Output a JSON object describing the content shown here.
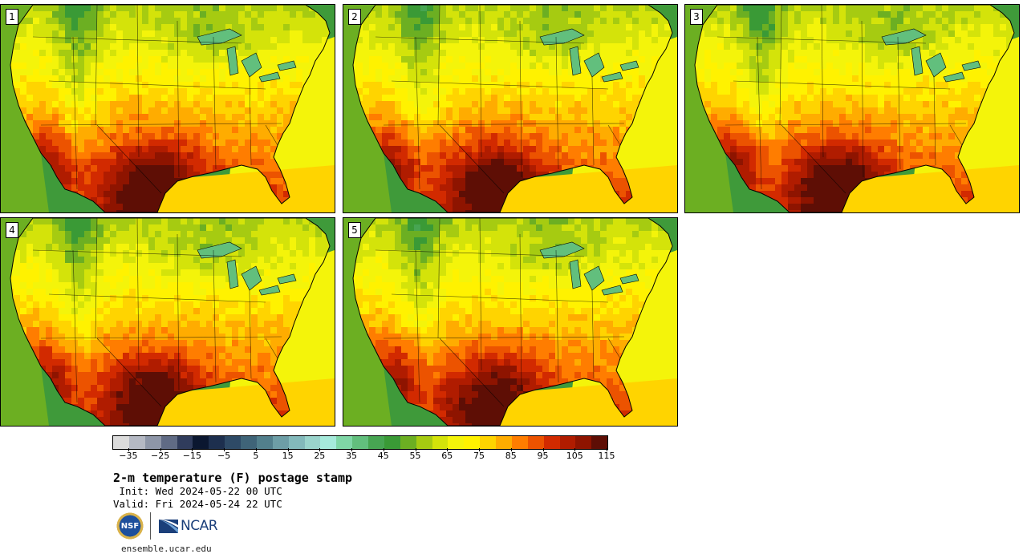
{
  "panels": [
    {
      "label": "1",
      "hot": 1.0
    },
    {
      "label": "2",
      "hot": 0.95
    },
    {
      "label": "3",
      "hot": 1.02
    },
    {
      "label": "4",
      "hot": 1.0
    },
    {
      "label": "5",
      "hot": 0.92
    }
  ],
  "colorbar": {
    "colors": [
      "#dcdcdc",
      "#b5b9c4",
      "#8e96a8",
      "#606b85",
      "#303c5c",
      "#0b1730",
      "#1d2f4e",
      "#2e4a66",
      "#3f6478",
      "#527f8c",
      "#6d9ea6",
      "#83b9bb",
      "#9ad4cc",
      "#a6eadb",
      "#7fd6a6",
      "#62bf7d",
      "#47a552",
      "#3a9a36",
      "#6caf22",
      "#a6cb11",
      "#d4e30a",
      "#f4f40a",
      "#fff200",
      "#ffd400",
      "#ffac00",
      "#ff7d00",
      "#ec5300",
      "#d22a00",
      "#b01c00",
      "#8e1400",
      "#5e0e05"
    ],
    "ticks": [
      "−35",
      "−25",
      "−15",
      "−5",
      "5",
      "15",
      "25",
      "35",
      "45",
      "55",
      "65",
      "75",
      "85",
      "95",
      "105",
      "115"
    ],
    "min": -40,
    "max": 120,
    "step": 5
  },
  "text": {
    "title": "2-m temperature (F) postage stamp",
    "init": " Init: Wed 2024-05-22 00 UTC",
    "valid": "Valid: Fri 2024-05-24 22 UTC",
    "nsf": "NSF",
    "ncar": "NCAR",
    "url": "ensemble.ucar.edu"
  }
}
